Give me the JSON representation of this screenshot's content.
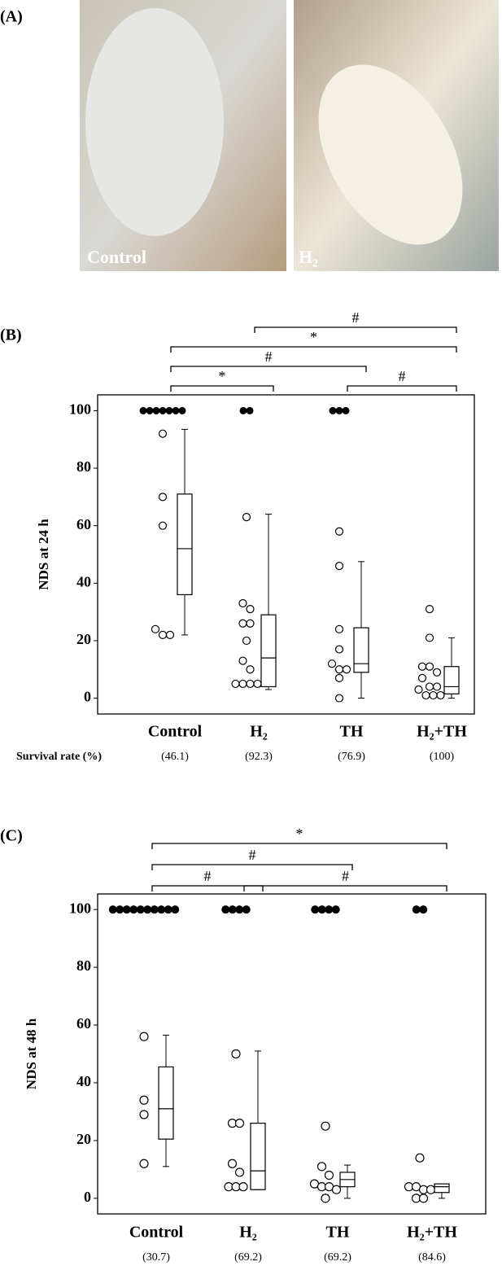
{
  "panel_a": {
    "label": "(A)",
    "photos": [
      "Control",
      "H₂"
    ]
  },
  "chart_data": [
    {
      "type": "box",
      "panel_label": "(B)",
      "y_label": "NDS at 24 h",
      "categories": [
        "Control",
        "H₂",
        "TH",
        "H₂+TH"
      ],
      "ylim": [
        -5.5,
        105.5
      ],
      "yticks": [
        0,
        20,
        40,
        60,
        80,
        100
      ],
      "groups": [
        {
          "filled": [
            100,
            100,
            100,
            100,
            100,
            100,
            100
          ],
          "open": [
            92,
            70,
            60,
            24,
            22,
            22
          ],
          "box": {
            "whisker_low": 22,
            "q1": 36,
            "median": 52,
            "q3": 71,
            "whisker_high": 93.5
          }
        },
        {
          "filled": [
            100,
            100
          ],
          "open": [
            63,
            33,
            31,
            26,
            26,
            20,
            13,
            10,
            5,
            5,
            5,
            5
          ],
          "box": {
            "whisker_low": 3,
            "q1": 4,
            "median": 14,
            "q3": 29,
            "whisker_high": 64
          }
        },
        {
          "filled": [
            100,
            100,
            100
          ],
          "open": [
            58,
            46,
            24,
            17,
            12,
            10,
            10,
            7,
            0
          ],
          "box": {
            "whisker_low": 0,
            "q1": 9,
            "median": 12,
            "q3": 24.5,
            "whisker_high": 47.5
          }
        },
        {
          "filled": [],
          "open": [
            31,
            21,
            11,
            11,
            9,
            7,
            4,
            4,
            3,
            1,
            1,
            1
          ],
          "box": {
            "whisker_low": 0,
            "q1": 1.5,
            "median": 4,
            "q3": 11,
            "whisker_high": 21
          }
        }
      ],
      "comparisons": [
        {
          "from": 0,
          "to": 1,
          "label": "*"
        },
        {
          "from": 2,
          "to": 3,
          "label": "#"
        },
        {
          "from": 0,
          "to": 2,
          "label": "#"
        },
        {
          "from": 0,
          "to": 3,
          "label": "*"
        },
        {
          "from": 1,
          "to": 3,
          "label": "#"
        }
      ],
      "survival_rate": {
        "label": "Survival rate (%)",
        "values": [
          46.1,
          92.3,
          76.9,
          100
        ],
        "value_labels": [
          "(46.1)",
          "(92.3)",
          "(76.9)",
          "(100)"
        ]
      }
    },
    {
      "type": "box",
      "panel_label": "(C)",
      "y_label": "NDS at 48 h",
      "categories": [
        "Control",
        "H₂",
        "TH",
        "H₂+TH"
      ],
      "ylim": [
        -5.4,
        105.4
      ],
      "yticks": [
        0,
        20,
        40,
        60,
        80,
        100
      ],
      "groups": [
        {
          "filled": [
            100,
            100,
            100,
            100,
            100,
            100,
            100,
            100,
            100,
            100
          ],
          "open": [
            56,
            34,
            29,
            12
          ],
          "box": {
            "whisker_low": 11,
            "q1": 20.5,
            "median": 31,
            "q3": 45.5,
            "whisker_high": 56.5
          }
        },
        {
          "filled": [
            100,
            100,
            100,
            100
          ],
          "open": [
            50,
            26,
            26,
            12,
            9,
            4,
            4,
            4
          ],
          "box": {
            "whisker_low": 3,
            "q1": 3,
            "median": 9.5,
            "q3": 26,
            "whisker_high": 51
          }
        },
        {
          "filled": [
            100,
            100,
            100,
            100
          ],
          "open": [
            25,
            11,
            8,
            5,
            4,
            4,
            3,
            0
          ],
          "box": {
            "whisker_low": 0,
            "q1": 4,
            "median": 6.5,
            "q3": 9,
            "whisker_high": 11.5
          }
        },
        {
          "filled": [
            100,
            100
          ],
          "open": [
            14,
            4,
            4,
            3,
            3,
            0,
            0
          ],
          "box": {
            "whisker_low": 0,
            "q1": 2,
            "median": 4,
            "q3": 5,
            "whisker_high": 5
          }
        }
      ],
      "comparisons": [
        {
          "from": 0,
          "to": 1,
          "label": "#"
        },
        {
          "from": 0,
          "to": 2,
          "label": "#"
        },
        {
          "from": 0,
          "to": 3,
          "label": "*"
        },
        {
          "from": 1,
          "to": 3,
          "label": "#"
        }
      ],
      "survival_rate": {
        "values": [
          30.7,
          69.2,
          69.2,
          84.6
        ],
        "value_labels": [
          "(30.7)",
          "(69.2)",
          "(69.2)",
          "(84.6)"
        ]
      }
    }
  ]
}
